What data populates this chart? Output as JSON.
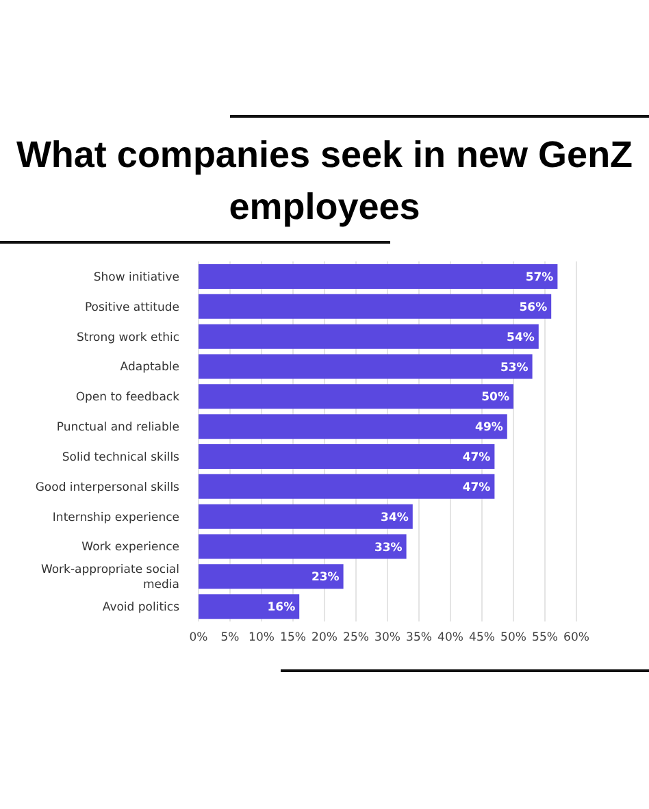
{
  "chart_data": {
    "type": "bar",
    "orientation": "horizontal",
    "title": "What companies seek in new GenZ employees",
    "categories": [
      "Show initiative",
      "Positive attitude",
      "Strong work ethic",
      "Adaptable",
      "Open to feedback",
      "Punctual and reliable",
      "Solid technical skills",
      "Good interpersonal skills",
      "Internship experience",
      "Work experience",
      "Work-appropriate social media",
      "Avoid politics"
    ],
    "values": [
      57,
      56,
      54,
      53,
      50,
      49,
      47,
      47,
      34,
      33,
      23,
      16
    ],
    "value_labels": [
      "57%",
      "56%",
      "54%",
      "53%",
      "50%",
      "49%",
      "47%",
      "47%",
      "34%",
      "33%",
      "23%",
      "16%"
    ],
    "color": "#5a48e0",
    "xlim": [
      0,
      60
    ],
    "xticks": [
      {
        "value": 0,
        "label": "0%"
      },
      {
        "value": 5,
        "label": "5%"
      },
      {
        "value": 10,
        "label": "10%"
      },
      {
        "value": 15,
        "label": "15%"
      },
      {
        "value": 20,
        "label": "20%"
      },
      {
        "value": 25,
        "label": "25%"
      },
      {
        "value": 30,
        "label": "30%"
      },
      {
        "value": 35,
        "label": "35%"
      },
      {
        "value": 40,
        "label": "40%"
      },
      {
        "value": 45,
        "label": "45%"
      },
      {
        "value": 50,
        "label": "50%"
      },
      {
        "value": 55,
        "label": "55%"
      },
      {
        "value": 60,
        "label": "60%"
      }
    ],
    "grid": "x"
  }
}
